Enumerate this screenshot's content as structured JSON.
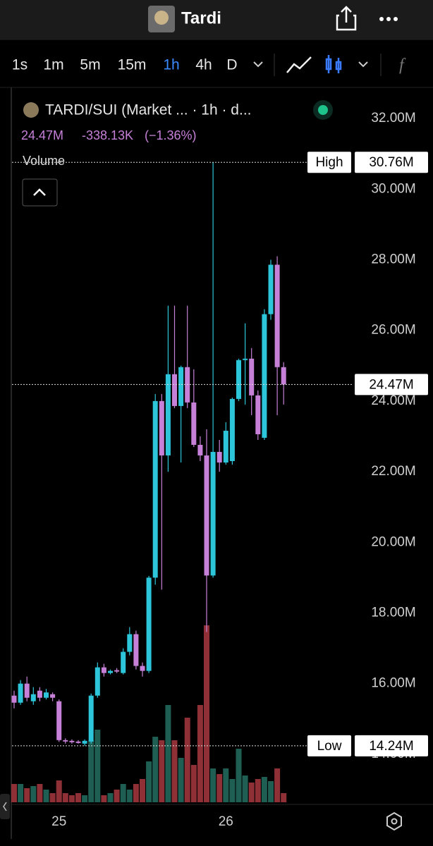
{
  "ui": {
    "title": "Tardi",
    "intervals": [
      "1s",
      "1m",
      "5m",
      "15m",
      "1h",
      "4h",
      "D"
    ],
    "active_interval": 4,
    "symbol": "TARDI/SUI (Market ... · 1h · d...",
    "price": "24.47M",
    "change": "-338.13K",
    "change_pct": "(−1.36%)",
    "volume_label": "Volume"
  },
  "chart_data": {
    "type": "candlestick",
    "categories": [
      null,
      null,
      null,
      null,
      null,
      null,
      null,
      "25",
      null,
      null,
      null,
      null,
      null,
      null,
      null,
      null,
      null,
      null,
      null,
      null,
      null,
      null,
      null,
      null,
      null,
      null,
      null,
      null,
      null,
      null,
      null,
      null,
      null,
      "26",
      null,
      null,
      null,
      null,
      null,
      null,
      null,
      null,
      null
    ],
    "open": [
      15.66,
      15.46,
      16.0,
      15.5,
      15.8,
      15.6,
      15.7,
      15.5,
      14.4,
      14.38,
      14.36,
      14.3,
      14.36,
      15.66,
      16.46,
      16.3,
      16.38,
      16.3,
      16.9,
      17.4,
      16.5,
      16.36,
      19.0,
      24.0,
      22.46,
      24.76,
      23.86,
      24.96,
      23.96,
      22.76,
      22.46,
      19.06,
      22.56,
      22.26,
      22.3,
      24.06,
      25.16,
      25.2,
      24.16,
      22.96,
      26.46,
      27.86,
      24.96
    ],
    "high": [
      15.8,
      16.1,
      16.2,
      15.9,
      15.9,
      15.85,
      15.75,
      15.55,
      14.45,
      14.42,
      14.4,
      14.42,
      15.72,
      16.6,
      16.56,
      16.4,
      16.44,
      17.0,
      17.6,
      17.5,
      16.6,
      19.05,
      24.2,
      24.2,
      26.7,
      26.7,
      25.0,
      26.7,
      24.9,
      23.0,
      23.2,
      30.76,
      22.9,
      23.4,
      24.1,
      25.2,
      26.2,
      25.5,
      24.3,
      26.6,
      28.0,
      28.1,
      25.1
    ],
    "low": [
      15.3,
      15.4,
      15.5,
      15.4,
      15.5,
      15.55,
      15.5,
      14.35,
      14.3,
      14.3,
      14.3,
      14.24,
      14.3,
      15.6,
      16.2,
      16.26,
      16.3,
      16.26,
      16.8,
      16.4,
      16.2,
      16.3,
      18.8,
      18.66,
      22.0,
      23.8,
      22.26,
      23.8,
      22.7,
      22.3,
      17.46,
      19.0,
      22.0,
      22.2,
      22.2,
      24.0,
      23.9,
      23.6,
      22.9,
      22.9,
      26.3,
      23.6,
      23.9
    ],
    "close": [
      15.46,
      16.0,
      15.6,
      15.7,
      15.6,
      15.75,
      15.6,
      14.4,
      14.36,
      14.34,
      14.32,
      14.38,
      15.66,
      16.46,
      16.3,
      16.36,
      16.34,
      16.9,
      17.4,
      16.5,
      16.36,
      19.0,
      24.0,
      22.46,
      24.76,
      23.86,
      24.96,
      23.96,
      22.76,
      22.46,
      19.06,
      22.56,
      22.26,
      23.16,
      24.06,
      25.16,
      25.2,
      24.16,
      23.06,
      26.46,
      27.86,
      24.96,
      24.47
    ],
    "volume": [
      26,
      26,
      20,
      23,
      26,
      18,
      13,
      31,
      13,
      10,
      13,
      10,
      88,
      103,
      10,
      13,
      18,
      26,
      18,
      26,
      33,
      58,
      93,
      88,
      138,
      88,
      63,
      120,
      53,
      138,
      251,
      48,
      40,
      48,
      33,
      76,
      38,
      28,
      33,
      36,
      30,
      48,
      13
    ],
    "up_color": "#2cc5d9",
    "down_color": "#c680d8",
    "volume_up_color": "#1f5f53",
    "volume_down_color": "#8f3036",
    "ylim": [
      12.6,
      32.86
    ],
    "yticks": [
      {
        "value": 32,
        "label": "32.00M"
      },
      {
        "value": 30,
        "label": "30.00M"
      },
      {
        "value": 28,
        "label": "28.00M"
      },
      {
        "value": 26,
        "label": "26.00M"
      },
      {
        "value": 24,
        "label": "24.00M"
      },
      {
        "value": 22,
        "label": "22.00M"
      },
      {
        "value": 20,
        "label": "20.00M"
      },
      {
        "value": 18,
        "label": "18.00M"
      },
      {
        "value": 16,
        "label": "16.00M"
      },
      {
        "value": 14,
        "label": "14.00M"
      }
    ],
    "markers": [
      {
        "name": "High",
        "value": 30.76,
        "label": "30.76M"
      },
      {
        "name": "Low",
        "value": 14.24,
        "label": "14.24M"
      }
    ],
    "last_price": {
      "value": 24.47,
      "label": "24.47M"
    }
  }
}
